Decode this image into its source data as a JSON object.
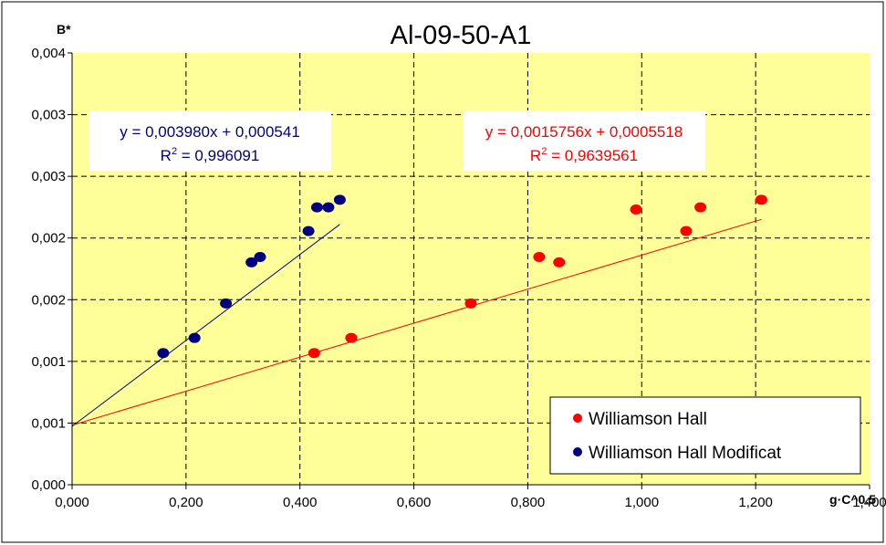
{
  "chart_data": {
    "type": "scatter",
    "title": "Al-09-50-A1",
    "xlabel": "g·C^0.5",
    "ylabel": "B*",
    "xlim": [
      0,
      1.4
    ],
    "ylim": [
      0,
      0.004
    ],
    "x_ticks": [
      "0,000",
      "0,200",
      "0,400",
      "0,600",
      "0,800",
      "1,000",
      "1,200",
      "1,400"
    ],
    "y_ticks": [
      "0,000",
      "0,001",
      "0,001",
      "0,002",
      "0,002",
      "0,003",
      "0,003",
      "0,004"
    ],
    "grid": true,
    "legend_position": "bottom-right",
    "plot_background": "#ffff99",
    "series": [
      {
        "name": "Williamson Hall",
        "color": "#ff0000",
        "x": [
          0.425,
          0.49,
          0.7,
          0.82,
          0.855,
          0.99,
          1.078,
          1.103,
          1.21
        ],
        "y": [
          0.00122,
          0.00136,
          0.00168,
          0.00211,
          0.00206,
          0.00255,
          0.00235,
          0.00257,
          0.00264
        ],
        "trendline": {
          "slope": 0.0015756,
          "intercept": 0.0005518,
          "equation": "y = 0,0015756x + 0,0005518",
          "r2_prefix": "R",
          "r2_sup": "2",
          "r2_value": " = 0,9639561"
        }
      },
      {
        "name": "Williamson Hall Modificat",
        "color": "#000080",
        "x": [
          0.16,
          0.215,
          0.27,
          0.315,
          0.33,
          0.415,
          0.43,
          0.45,
          0.47
        ],
        "y": [
          0.00122,
          0.00136,
          0.00168,
          0.00206,
          0.00211,
          0.00235,
          0.00257,
          0.00257,
          0.00264
        ],
        "trendline": {
          "slope": 0.00398,
          "intercept": 0.000541,
          "equation": "y = 0,003980x + 0,000541",
          "r2_prefix": "R",
          "r2_sup": "2",
          "r2_value": " = 0,996091"
        }
      }
    ]
  }
}
